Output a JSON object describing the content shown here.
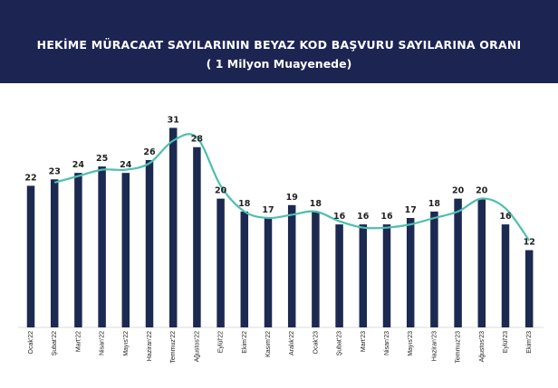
{
  "header": {
    "title": "HEKİME MÜRACAAT SAYILARININ BEYAZ KOD BAŞVURU SAYILARINA ORANI",
    "subtitle": "( 1 Milyon Muayenede)"
  },
  "colors": {
    "header_bg": "#1c2452",
    "bar": "#1c2a52",
    "line": "#4dbfae"
  },
  "chart_data": {
    "type": "bar",
    "title": "HEKİME MÜRACAAT SAYILARININ BEYAZ KOD BAŞVURU SAYILARINA ORANI",
    "subtitle": "( 1 Milyon Muayenede)",
    "categories": [
      "Ocak'22",
      "Şubat'22",
      "Mart'22",
      "Nisan'22",
      "Mayıs'22",
      "Haziran'22",
      "Temmuz'22",
      "Ağustos'22",
      "Eylül'22",
      "Ekim'22",
      "Kasım'22",
      "Aralık'22",
      "Ocak'23",
      "Şubat'23",
      "Mart'23",
      "Nisan'23",
      "Mayıs'23",
      "Haziran'23",
      "Temmuz'23",
      "Ağustos'23",
      "Eylül'23",
      "Ekim'23"
    ],
    "values": [
      22,
      23,
      24,
      25,
      24,
      26,
      31,
      28,
      20,
      18,
      17,
      19,
      18,
      16,
      16,
      16,
      17,
      18,
      20,
      20,
      16,
      12
    ],
    "trend_line": [
      null,
      22.5,
      23.5,
      24.5,
      24.5,
      25.5,
      29,
      29.5,
      22,
      18,
      17,
      17.5,
      18,
      16.5,
      15.5,
      15.5,
      16,
      17,
      18,
      20,
      18.5,
      13.5
    ],
    "ylim": [
      0,
      34
    ],
    "grid": false,
    "legend": "none"
  }
}
